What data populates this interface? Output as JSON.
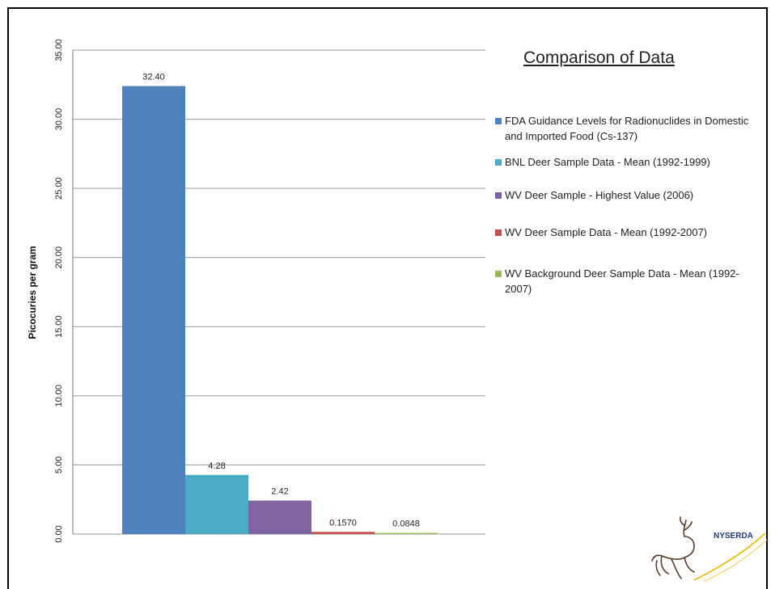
{
  "chart_data": {
    "type": "bar",
    "title": "Comparison of Data",
    "ylabel": "Picocuries per gram",
    "xlabel": "",
    "ylim": [
      0,
      35
    ],
    "yticks": [
      "0.00",
      "5.00",
      "10.00",
      "15.00",
      "20.00",
      "25.00",
      "30.00",
      "35.00"
    ],
    "grid": true,
    "legend_position": "right",
    "series": [
      {
        "name": "FDA Guidance Levels for Radionuclides in Domestic and Imported Food (Cs-137)",
        "value": 32.4,
        "label": "32.40",
        "color": "#4F81BD"
      },
      {
        "name": "BNL Deer Sample Data - Mean (1992-1999)",
        "value": 4.28,
        "label": "4.28",
        "color": "#4BACC6"
      },
      {
        "name": "WV Deer Sample - Highest Value (2006)",
        "value": 2.42,
        "label": "2.42",
        "color": "#8064A2"
      },
      {
        "name": "WV Deer Sample Data - Mean (1992-2007)",
        "value": 0.157,
        "label": "0.1570",
        "color": "#C0504D"
      },
      {
        "name": "WV Background Deer Sample Data - Mean (1992-2007)",
        "value": 0.0848,
        "label": "0.0848",
        "color": "#9BBB59"
      }
    ]
  },
  "logo": {
    "text": "NYSERDA",
    "icon": "deer-icon",
    "text_color": "#1F3E7A",
    "accent_color": "#F0B400"
  }
}
